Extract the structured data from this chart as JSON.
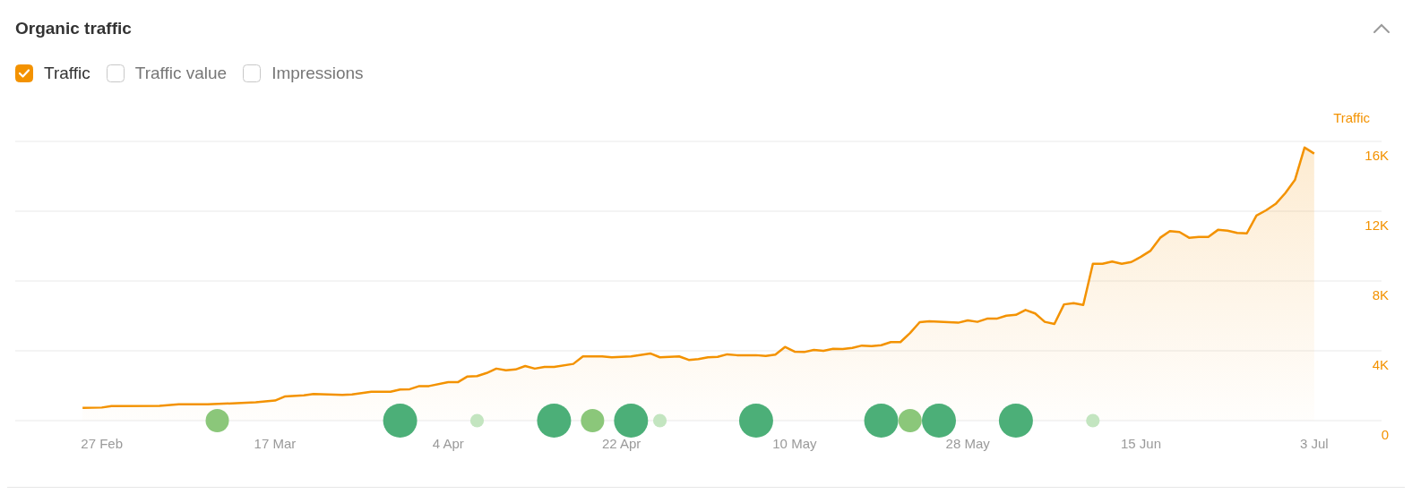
{
  "chart_data": {
    "type": "area",
    "title": "Organic traffic",
    "ylabel": "Traffic",
    "legend": "top left",
    "grid": "y",
    "annotations": [
      "Traffic value",
      "Impressions"
    ],
    "xlim": [
      "--02-18",
      "--07-10"
    ],
    "xticks": [
      {
        "value": "--02-27",
        "label": "27 Feb"
      },
      {
        "value": "--03-17",
        "label": "17 Mar"
      },
      {
        "value": "--04-04",
        "label": "4 Apr"
      },
      {
        "value": "--04-22",
        "label": "22 Apr"
      },
      {
        "value": "--05-10",
        "label": "10 May"
      },
      {
        "value": "--05-28",
        "label": "28 May"
      },
      {
        "value": "--06-15",
        "label": "15 Jun"
      },
      {
        "value": "--07-03",
        "label": "3 Jul"
      }
    ],
    "ylim": [
      0,
      16000
    ],
    "yticks": [
      0,
      {
        "value": 4000,
        "label": "4K"
      },
      {
        "value": 8000,
        "label": "8K"
      },
      {
        "value": 12000,
        "label": "12K"
      },
      {
        "value": 16000,
        "label": "16K"
      }
    ],
    "series": [
      {
        "name": "Traffic",
        "color": "#f39200",
        "x": [
          "--02-25",
          "--02-27",
          "--02-28",
          "--03-05",
          "--03-07",
          "--03-10",
          "--03-15",
          "--03-17",
          "--03-18",
          "--03-20",
          "--03-21",
          "--03-24",
          "--03-25",
          "--03-27",
          "--03-29",
          "--03-30",
          "--03-31",
          "--04-01",
          "--04-02",
          "--04-04",
          "--04-05",
          "--04-06",
          "--04-07",
          "--04-08",
          "--04-09",
          "--04-10",
          "--04-11",
          "--04-12",
          "--04-13",
          "--04-14",
          "--04-15",
          "--04-17",
          "--04-18",
          "--04-20",
          "--04-21",
          "--04-23",
          "--04-25",
          "--04-26",
          "--04-28",
          "--04-29",
          "--04-30",
          "--05-01",
          "--05-02",
          "--05-03",
          "--05-04",
          "--05-06",
          "--05-07",
          "--05-08",
          "--05-09",
          "--05-10",
          "--05-11",
          "--05-12",
          "--05-13",
          "--05-14",
          "--05-15",
          "--05-16",
          "--05-17",
          "--05-18",
          "--05-19",
          "--05-20",
          "--05-21",
          "--05-22",
          "--05-23",
          "--05-24",
          "--05-27",
          "--05-28",
          "--05-29",
          "--05-30",
          "--05-31",
          "--06-01",
          "--06-02",
          "--06-03",
          "--06-04",
          "--06-05",
          "--06-06",
          "--06-07",
          "--06-08",
          "--06-09",
          "--06-10",
          "--06-11",
          "--06-12",
          "--06-13",
          "--06-14",
          "--06-15",
          "--06-16",
          "--06-17",
          "--06-18",
          "--06-19",
          "--06-20",
          "--06-21",
          "--06-22",
          "--06-23",
          "--06-24",
          "--06-25",
          "--06-26",
          "--06-27",
          "--06-28",
          "--06-29",
          "--06-30",
          "--07-01",
          "--07-02",
          "--07-03"
        ],
        "values": [
          730,
          750,
          830,
          850,
          930,
          930,
          1050,
          1150,
          1380,
          1450,
          1530,
          1480,
          1500,
          1650,
          1650,
          1780,
          1800,
          1980,
          1980,
          2200,
          2200,
          2530,
          2550,
          2730,
          2980,
          2880,
          2930,
          3130,
          2980,
          3080,
          3080,
          3250,
          3680,
          3680,
          3630,
          3680,
          3850,
          3630,
          3680,
          3480,
          3530,
          3630,
          3650,
          3800,
          3750,
          3750,
          3700,
          3780,
          4220,
          3950,
          3930,
          4050,
          4000,
          4120,
          4100,
          4170,
          4300,
          4270,
          4320,
          4500,
          4500,
          5020,
          5640,
          5690,
          5610,
          5740,
          5660,
          5840,
          5840,
          6010,
          6060,
          6340,
          6140,
          5660,
          5540,
          6660,
          6730,
          6630,
          8990,
          8990,
          9120,
          8990,
          9090,
          9390,
          9740,
          10480,
          10860,
          10810,
          10480,
          10530,
          10530,
          10930,
          10880,
          10760,
          10730,
          11750,
          12050,
          12420,
          13040,
          13790,
          15650,
          15300
        ]
      },
      {
        "type": "bubble",
        "x": [
          "--03-11",
          "--03-30",
          "--04-07",
          "--04-15",
          "--04-19",
          "--04-23",
          "--04-26",
          "--05-06",
          "--05-19",
          "--05-22",
          "--05-25",
          "--06-02",
          "--06-10"
        ],
        "values": [
          0,
          0,
          0,
          0,
          0,
          0,
          0,
          0,
          0,
          0,
          0,
          0,
          0
        ],
        "sizes": [
          0.47,
          1,
          0.16,
          1,
          0.47,
          1,
          0.16,
          1,
          1,
          0.47,
          1,
          1,
          0.16
        ],
        "colors": [
          "#8bc77a",
          "#4caf78",
          "#c3e5c0",
          "#4caf78",
          "#8bc77a",
          "#4caf78",
          "#c3e5c0",
          "#4caf78",
          "#4caf78",
          "#8bc77a",
          "#4caf78",
          "#4caf78",
          "#c3e5c0"
        ]
      }
    ]
  }
}
